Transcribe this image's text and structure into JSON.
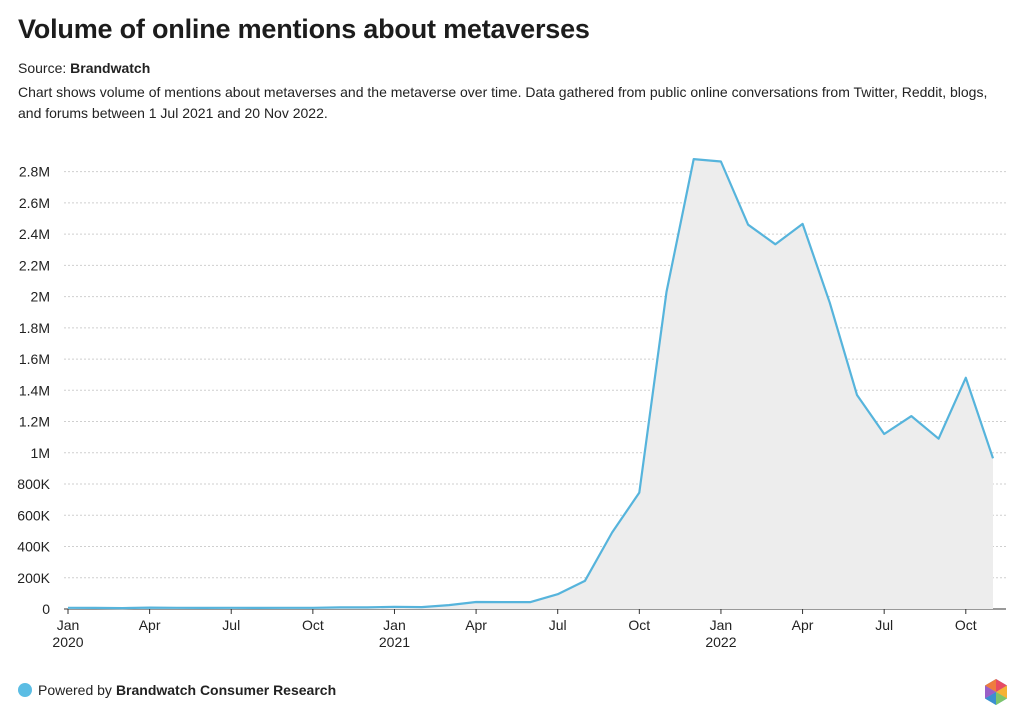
{
  "title": "Volume of online mentions about metaverses",
  "source_label": "Source:",
  "source_name": "Brandwatch",
  "description": "Chart shows volume of mentions about metaverses and the metaverse over time. Data gathered from public online conversations from Twitter, Reddit, blogs, and forums between 1 Jul 2021 and 20 Nov 2022.",
  "footer": {
    "powered_label": "Powered by",
    "brand": "Brandwatch Consumer Research"
  },
  "colors": {
    "line": "#56b4dc",
    "fill": "#ededed",
    "grid": "#cfcfcf",
    "dot": "#5bbde4"
  },
  "chart_data": {
    "type": "area",
    "title": "Volume of online mentions about metaverses",
    "xlabel": "",
    "ylabel": "",
    "ylim": [
      0,
      2900000
    ],
    "yticks": [
      {
        "value": 0,
        "label": "0"
      },
      {
        "value": 200000,
        "label": "200K"
      },
      {
        "value": 400000,
        "label": "400K"
      },
      {
        "value": 600000,
        "label": "600K"
      },
      {
        "value": 800000,
        "label": "800K"
      },
      {
        "value": 1000000,
        "label": "1M"
      },
      {
        "value": 1200000,
        "label": "1.2M"
      },
      {
        "value": 1400000,
        "label": "1.4M"
      },
      {
        "value": 1600000,
        "label": "1.6M"
      },
      {
        "value": 1800000,
        "label": "1.8M"
      },
      {
        "value": 2000000,
        "label": "2M"
      },
      {
        "value": 2200000,
        "label": "2.2M"
      },
      {
        "value": 2400000,
        "label": "2.4M"
      },
      {
        "value": 2600000,
        "label": "2.6M"
      },
      {
        "value": 2800000,
        "label": "2.8M"
      }
    ],
    "xticks": [
      {
        "index": 0,
        "label": "Jan",
        "year": "2020"
      },
      {
        "index": 3,
        "label": "Apr",
        "year": ""
      },
      {
        "index": 6,
        "label": "Jul",
        "year": ""
      },
      {
        "index": 9,
        "label": "Oct",
        "year": ""
      },
      {
        "index": 12,
        "label": "Jan",
        "year": "2021"
      },
      {
        "index": 15,
        "label": "Apr",
        "year": ""
      },
      {
        "index": 18,
        "label": "Jul",
        "year": ""
      },
      {
        "index": 21,
        "label": "Oct",
        "year": ""
      },
      {
        "index": 24,
        "label": "Jan",
        "year": "2022"
      },
      {
        "index": 27,
        "label": "Apr",
        "year": ""
      },
      {
        "index": 30,
        "label": "Jul",
        "year": ""
      },
      {
        "index": 33,
        "label": "Oct",
        "year": ""
      }
    ],
    "series": [
      {
        "name": "Mentions",
        "values": [
          8000,
          7000,
          6000,
          9000,
          8000,
          7000,
          8000,
          7000,
          8000,
          8000,
          10000,
          10000,
          14000,
          12000,
          25000,
          45000,
          44000,
          44000,
          95000,
          180000,
          490000,
          745000,
          2030000,
          2880000,
          2865000,
          2460000,
          2335000,
          2465000,
          1960000,
          1370000,
          1120000,
          1235000,
          1090000,
          1480000,
          965000
        ]
      }
    ]
  }
}
